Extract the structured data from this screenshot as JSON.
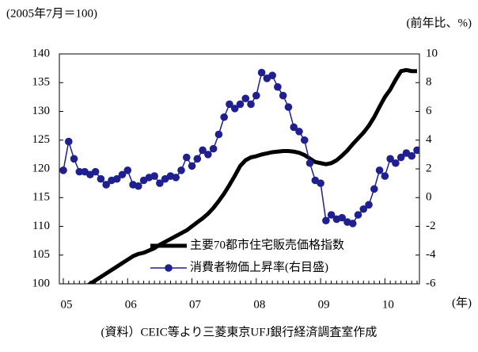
{
  "chart_data": {
    "type": "line",
    "y_label": "(2005年7月＝100)",
    "y2_label": "(前年比、%)",
    "x_label": "(年)",
    "source": "(資料）CEIC等より三菱東京UFJ銀行経済調査室作成",
    "categories": [
      "05",
      null,
      null,
      null,
      null,
      null,
      null,
      null,
      null,
      null,
      null,
      null,
      "06",
      null,
      null,
      null,
      null,
      null,
      null,
      null,
      null,
      null,
      null,
      null,
      "07",
      null,
      null,
      null,
      null,
      null,
      null,
      null,
      null,
      null,
      null,
      null,
      "08",
      null,
      null,
      null,
      null,
      null,
      null,
      null,
      null,
      null,
      null,
      null,
      "09",
      null,
      null,
      null,
      null,
      null,
      null,
      null,
      null,
      null,
      null,
      null,
      "10",
      null,
      null,
      null,
      null,
      null,
      null
    ],
    "series": [
      {
        "name": "主要70都市住宅販売価格指数",
        "color": "#000000",
        "axis": "y",
        "values": [
          97.0,
          97.6,
          98.2,
          98.8,
          99.4,
          100.0,
          100.6,
          101.2,
          101.8,
          102.4,
          103.0,
          103.6,
          104.2,
          104.8,
          105.2,
          105.4,
          105.8,
          106.2,
          106.8,
          107.3,
          107.8,
          108.3,
          108.8,
          109.3,
          110.0,
          110.7,
          111.4,
          112.2,
          113.2,
          114.4,
          115.7,
          117.2,
          118.8,
          120.5,
          121.5,
          122.0,
          122.2,
          122.5,
          122.7,
          122.9,
          123.0,
          123.1,
          123.1,
          123.0,
          122.8,
          122.4,
          121.8,
          121.2,
          121.0,
          120.8,
          121.0,
          121.5,
          122.3,
          123.2,
          124.3,
          125.3,
          126.3,
          127.5,
          129.0,
          130.8,
          132.5,
          133.8,
          135.5,
          137.0,
          137.2,
          137.0,
          137.0
        ]
      },
      {
        "name": "消費者物価上昇率(右目盛)",
        "color": "#1f1f8f",
        "axis": "y2",
        "values": [
          1.9,
          3.9,
          2.7,
          1.8,
          1.8,
          1.6,
          1.8,
          1.3,
          0.9,
          1.2,
          1.3,
          1.6,
          1.9,
          0.9,
          0.8,
          1.2,
          1.4,
          1.5,
          1.0,
          1.3,
          1.5,
          1.4,
          1.9,
          2.8,
          2.2,
          2.7,
          3.3,
          3.0,
          3.4,
          4.4,
          5.6,
          6.5,
          6.2,
          6.5,
          6.9,
          6.5,
          7.1,
          8.7,
          8.3,
          8.5,
          7.7,
          7.1,
          6.3,
          4.9,
          4.6,
          4.0,
          2.4,
          1.2,
          1.0,
          -1.6,
          -1.2,
          -1.5,
          -1.4,
          -1.7,
          -1.8,
          -1.2,
          -0.8,
          -0.5,
          0.6,
          1.9,
          1.5,
          2.7,
          2.4,
          2.8,
          3.1,
          2.9,
          3.3
        ]
      }
    ],
    "ylim": [
      100,
      140
    ],
    "yticks": [
      100,
      105,
      110,
      115,
      120,
      125,
      130,
      135,
      140
    ],
    "y2lim": [
      -6,
      10
    ],
    "y2ticks": [
      -6,
      -4,
      -2,
      0,
      2,
      4,
      6,
      8,
      10
    ],
    "grid": false
  }
}
